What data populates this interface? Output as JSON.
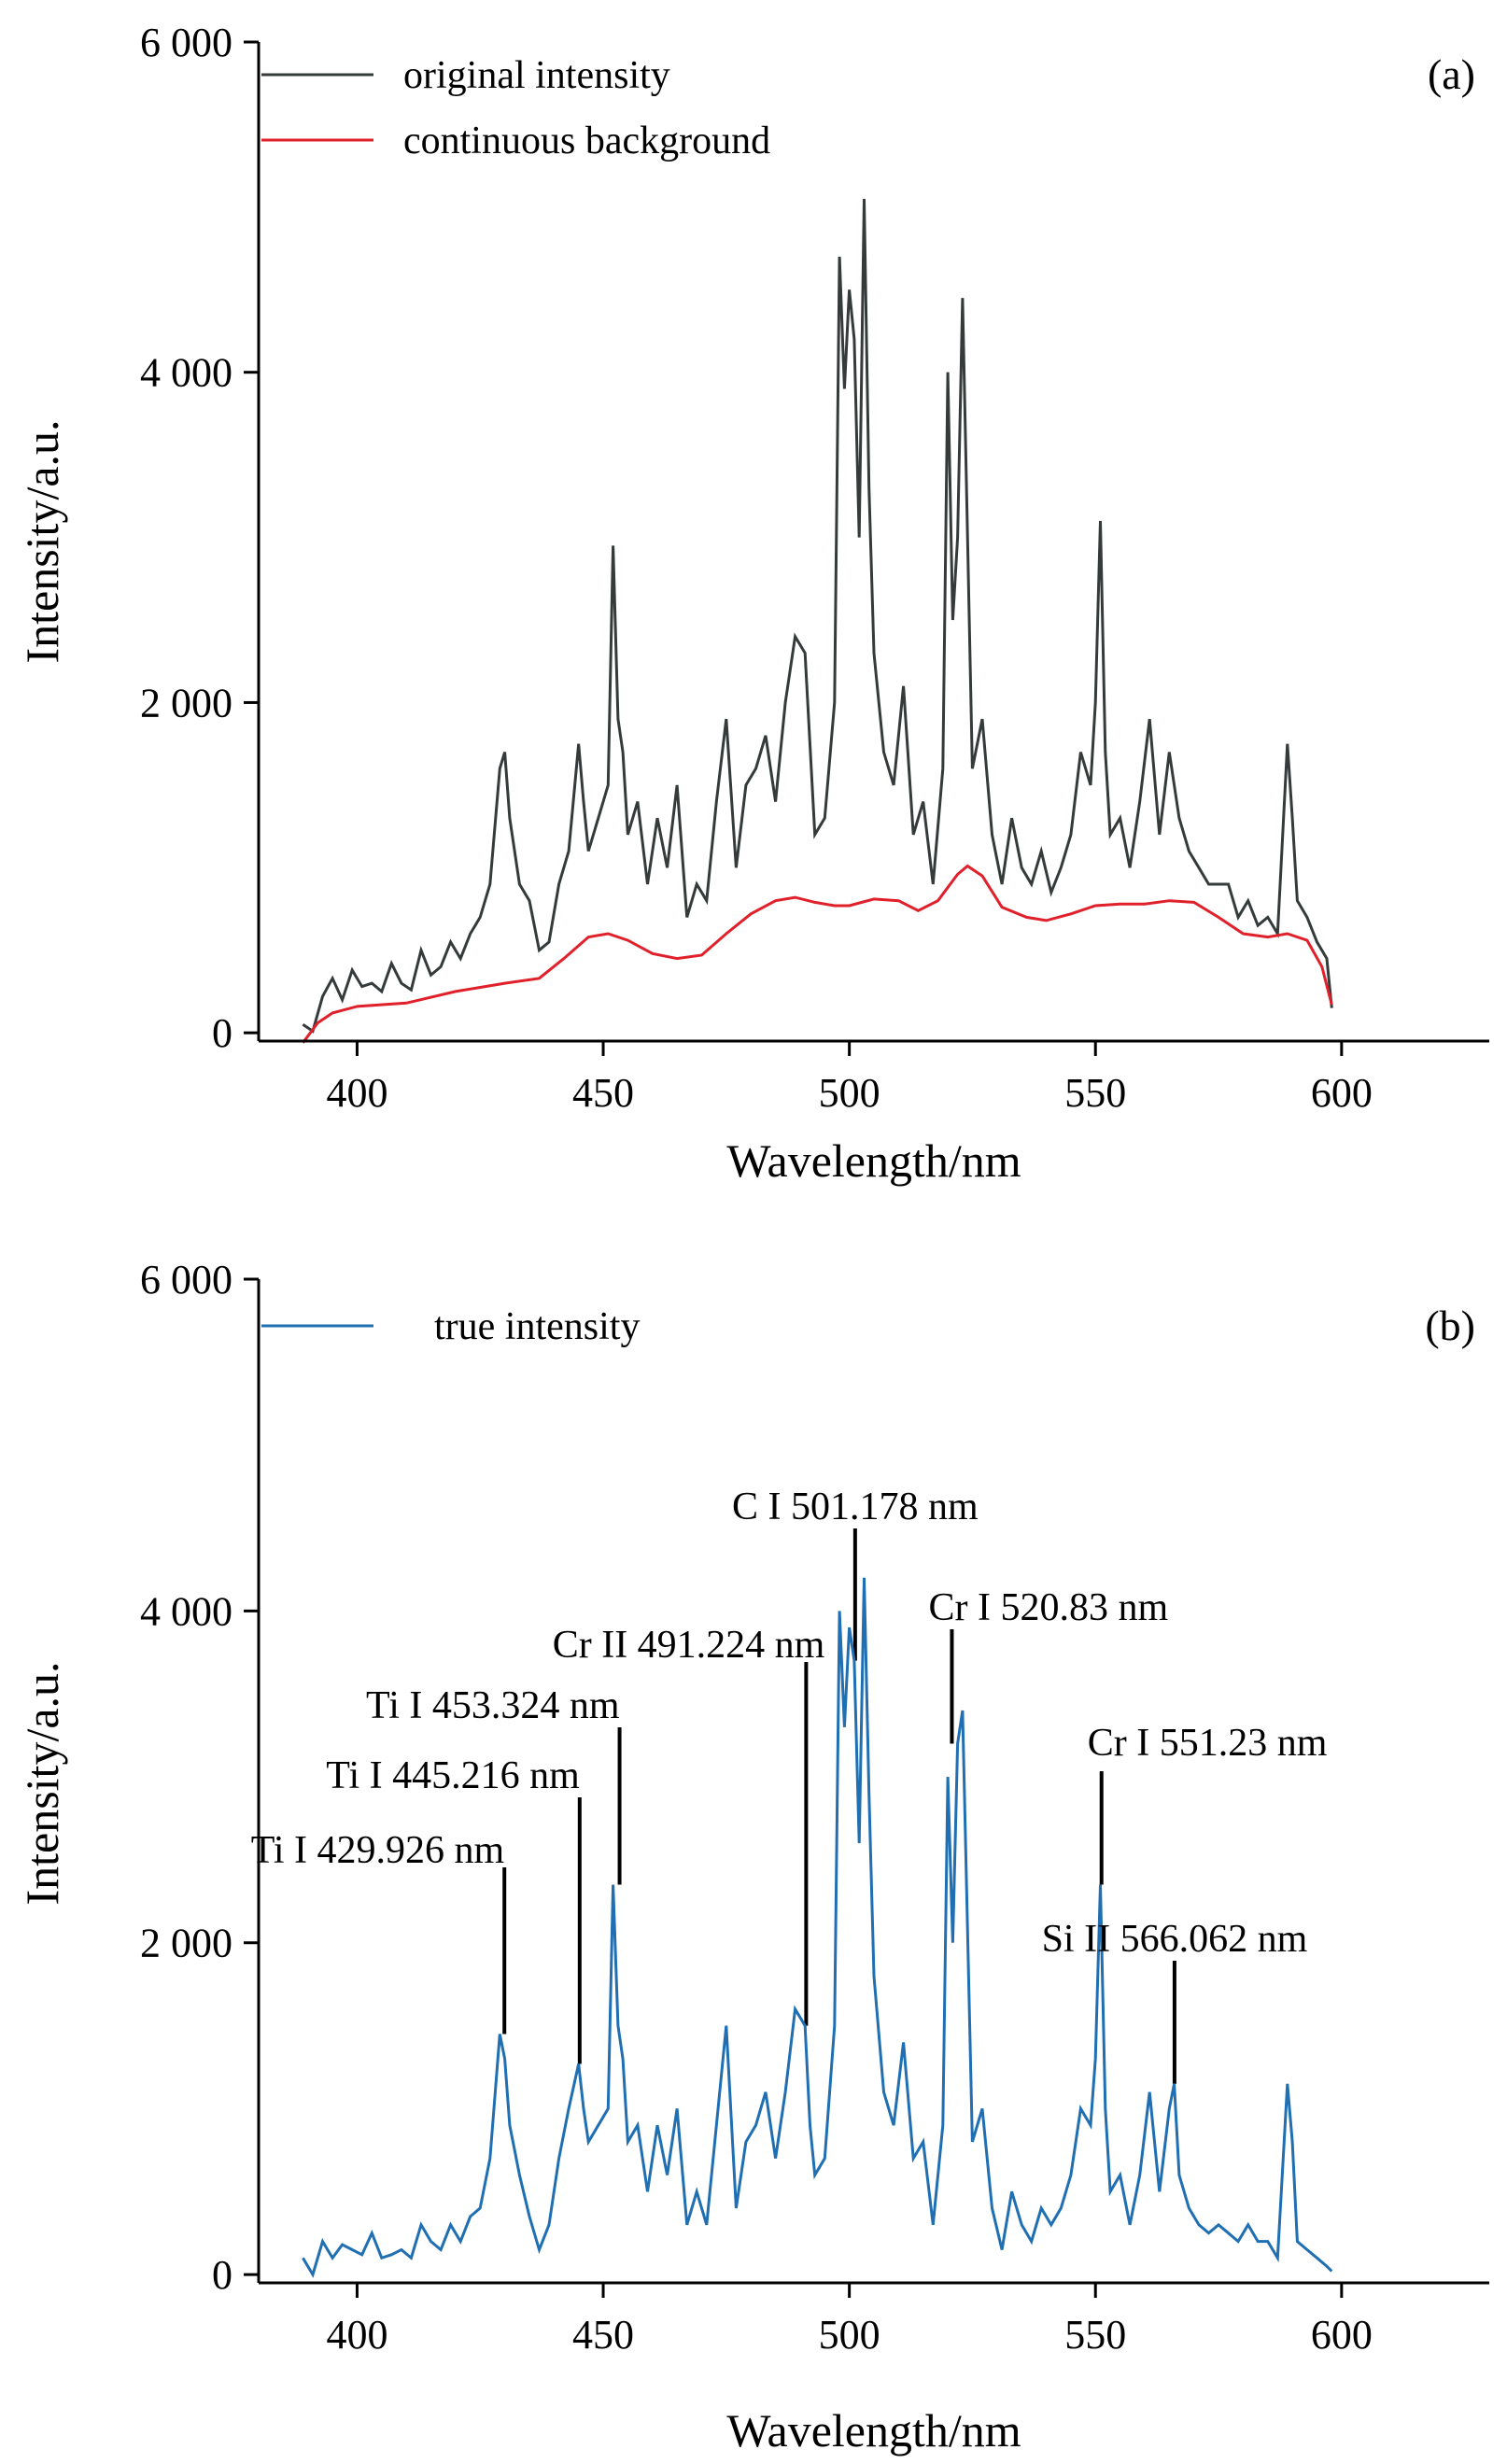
{
  "chart_data": [
    {
      "type": "line",
      "panel_label": "(a)",
      "xlabel": "Wavelength/nm",
      "ylabel": "Intensity/a.u.",
      "xlim": [
        380,
        630
      ],
      "ylim": [
        -50,
        6000
      ],
      "xticks": [
        400,
        450,
        500,
        550,
        600
      ],
      "xtick_labels": [
        "400",
        "450",
        "500",
        "550",
        "600"
      ],
      "yticks": [
        0,
        2000,
        4000,
        6000
      ],
      "ytick_labels": [
        "0",
        "2 000",
        "4 000",
        "6 000"
      ],
      "legend_position": "top-left",
      "grid": false,
      "series": [
        {
          "name": "original intensity",
          "color": "#353b3b",
          "x": [
            389,
            391,
            393,
            395,
            397,
            399,
            401,
            403,
            405,
            407,
            409,
            411,
            413,
            415,
            417,
            419,
            421,
            423,
            425,
            427,
            429,
            430,
            431,
            433,
            435,
            437,
            439,
            441,
            443,
            445,
            446,
            447,
            449,
            451,
            452,
            453,
            454,
            455,
            457,
            459,
            461,
            463,
            465,
            467,
            469,
            471,
            473,
            475,
            477,
            479,
            481,
            483,
            485,
            487,
            489,
            491,
            493,
            495,
            497,
            498,
            499,
            500,
            501,
            502,
            503,
            504,
            505,
            507,
            509,
            511,
            513,
            515,
            517,
            519,
            520,
            521,
            522,
            523,
            525,
            527,
            529,
            531,
            533,
            535,
            537,
            539,
            541,
            543,
            545,
            547,
            549,
            550,
            551,
            552,
            553,
            555,
            557,
            559,
            561,
            563,
            565,
            567,
            569,
            571,
            573,
            575,
            577,
            579,
            581,
            583,
            585,
            587,
            589,
            590,
            591,
            593,
            595,
            597,
            598
          ],
          "values": [
            50,
            10,
            220,
            330,
            200,
            380,
            280,
            300,
            250,
            420,
            300,
            260,
            500,
            350,
            400,
            550,
            450,
            600,
            700,
            900,
            1600,
            1700,
            1300,
            900,
            800,
            500,
            550,
            900,
            1100,
            1750,
            1400,
            1100,
            1300,
            1500,
            2950,
            1900,
            1700,
            1200,
            1400,
            900,
            1300,
            1000,
            1500,
            700,
            900,
            800,
            1400,
            1900,
            1000,
            1500,
            1600,
            1800,
            1400,
            2000,
            2400,
            2300,
            1200,
            1300,
            2000,
            4700,
            3900,
            4500,
            4200,
            3000,
            5050,
            3300,
            2300,
            1700,
            1500,
            2100,
            1200,
            1400,
            900,
            1600,
            4000,
            2500,
            3000,
            4450,
            1600,
            1900,
            1200,
            900,
            1300,
            1000,
            900,
            1100,
            850,
            1000,
            1200,
            1700,
            1500,
            2000,
            3100,
            1700,
            1200,
            1300,
            1000,
            1400,
            1900,
            1200,
            1700,
            1300,
            1100,
            1000,
            900,
            900,
            900,
            700,
            800,
            650,
            700,
            600,
            1750,
            1300,
            800,
            700,
            550,
            450,
            150
          ]
        },
        {
          "name": "continuous background",
          "color": "#e0202a",
          "x": [
            389,
            392,
            395,
            400,
            410,
            420,
            430,
            437,
            442,
            447,
            451,
            455,
            460,
            465,
            470,
            475,
            480,
            485,
            489,
            493,
            497,
            500,
            505,
            510,
            514,
            518,
            522,
            524,
            527,
            531,
            536,
            540,
            545,
            550,
            555,
            560,
            565,
            570,
            575,
            580,
            585,
            589,
            593,
            596,
            598
          ],
          "values": [
            -60,
            60,
            120,
            160,
            180,
            250,
            300,
            330,
            450,
            580,
            600,
            560,
            480,
            450,
            470,
            600,
            720,
            800,
            820,
            790,
            770,
            770,
            810,
            800,
            740,
            800,
            960,
            1010,
            950,
            760,
            700,
            680,
            720,
            770,
            780,
            780,
            800,
            790,
            700,
            600,
            580,
            600,
            560,
            400,
            170
          ]
        }
      ]
    },
    {
      "type": "line",
      "panel_label": "(b)",
      "xlabel": "Wavelength/nm",
      "ylabel": "Intensity/a.u.",
      "xlim": [
        380,
        630
      ],
      "ylim": [
        -50,
        6000
      ],
      "xticks": [
        400,
        450,
        500,
        550,
        600
      ],
      "xtick_labels": [
        "400",
        "450",
        "500",
        "550",
        "600"
      ],
      "yticks": [
        0,
        2000,
        4000,
        6000
      ],
      "ytick_labels": [
        "0",
        "2 000",
        "4 000",
        "6 000"
      ],
      "legend_position": "top-left",
      "grid": false,
      "series": [
        {
          "name": "true intensity",
          "color": "#1f6fb2",
          "x": [
            389,
            391,
            393,
            395,
            397,
            399,
            401,
            403,
            405,
            407,
            409,
            411,
            413,
            415,
            417,
            419,
            421,
            423,
            425,
            427,
            429,
            430,
            431,
            433,
            435,
            437,
            439,
            441,
            443,
            445,
            446,
            447,
            449,
            451,
            452,
            453,
            454,
            455,
            457,
            459,
            461,
            463,
            465,
            467,
            469,
            471,
            473,
            475,
            477,
            479,
            481,
            483,
            485,
            487,
            489,
            491,
            492,
            493,
            495,
            497,
            498,
            499,
            500,
            501,
            502,
            503,
            504,
            505,
            507,
            509,
            511,
            513,
            515,
            517,
            519,
            520,
            521,
            522,
            523,
            525,
            527,
            529,
            531,
            533,
            535,
            537,
            539,
            541,
            543,
            545,
            547,
            549,
            550,
            551,
            552,
            553,
            555,
            557,
            559,
            561,
            563,
            565,
            566,
            567,
            569,
            571,
            573,
            575,
            577,
            579,
            581,
            583,
            585,
            587,
            589,
            590,
            591,
            593,
            595,
            597,
            598
          ],
          "values": [
            100,
            0,
            200,
            100,
            180,
            150,
            120,
            250,
            100,
            120,
            150,
            100,
            300,
            200,
            150,
            300,
            200,
            350,
            400,
            700,
            1450,
            1300,
            900,
            600,
            350,
            150,
            300,
            700,
            1000,
            1270,
            1000,
            800,
            900,
            1000,
            2350,
            1500,
            1300,
            800,
            900,
            500,
            900,
            600,
            1000,
            300,
            500,
            300,
            900,
            1500,
            400,
            800,
            900,
            1100,
            700,
            1100,
            1600,
            1500,
            900,
            600,
            700,
            1500,
            4000,
            3300,
            3900,
            3700,
            2600,
            4200,
            2900,
            1800,
            1100,
            900,
            1400,
            700,
            800,
            300,
            900,
            3000,
            2000,
            3200,
            3400,
            800,
            1000,
            400,
            150,
            500,
            300,
            200,
            400,
            300,
            400,
            600,
            1000,
            900,
            1300,
            2350,
            1000,
            500,
            600,
            300,
            600,
            1100,
            500,
            1000,
            1150,
            600,
            400,
            300,
            250,
            300,
            250,
            200,
            300,
            200,
            200,
            100,
            1150,
            800,
            200,
            150,
            100,
            50,
            20
          ]
        }
      ],
      "annotations": [
        {
          "label": "Ti I 429.926 nm",
          "x": 429.926,
          "y": 1450
        },
        {
          "label": "Ti I 445.216 nm",
          "x": 445.216,
          "y": 1270
        },
        {
          "label": "Ti I 453.324 nm",
          "x": 453.324,
          "y": 2350
        },
        {
          "label": "Cr II 491.224 nm",
          "x": 491.224,
          "y": 1500
        },
        {
          "label": "C I 501.178 nm",
          "x": 501.178,
          "y": 3700
        },
        {
          "label": "Cr I 520.83 nm",
          "x": 520.83,
          "y": 3200
        },
        {
          "label": "Cr I 551.23 nm",
          "x": 551.23,
          "y": 2350
        },
        {
          "label": "Si II 566.062 nm",
          "x": 566.062,
          "y": 1150
        }
      ]
    }
  ]
}
